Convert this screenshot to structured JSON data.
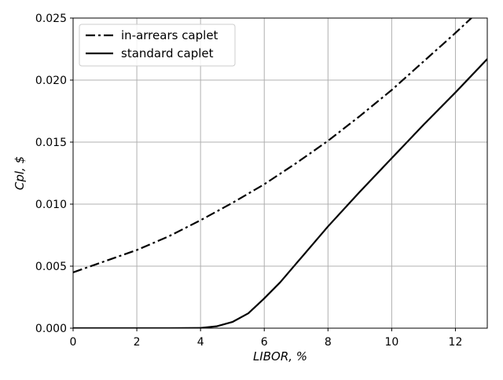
{
  "chart_data": {
    "type": "line",
    "title": "",
    "xlabel": "LIBOR, %",
    "ylabel": "Cpl, $",
    "xlim": [
      0,
      13
    ],
    "ylim": [
      0,
      0.025
    ],
    "x_ticks": [
      "0",
      "2",
      "4",
      "6",
      "8",
      "10",
      "12"
    ],
    "y_ticks": [
      "0.000",
      "0.005",
      "0.010",
      "0.015",
      "0.020",
      "0.025"
    ],
    "grid": true,
    "legend_position": "top-left",
    "series": [
      {
        "name": "in-arrears caplet",
        "style": "dash-dot",
        "color": "#000000",
        "x": [
          0,
          1,
          2,
          3,
          4,
          5,
          6,
          7,
          8,
          9,
          10,
          11,
          12,
          13
        ],
        "y": [
          0.0045,
          0.0054,
          0.0063,
          0.0074,
          0.0087,
          0.0101,
          0.0116,
          0.0133,
          0.0151,
          0.0171,
          0.0192,
          0.0215,
          0.0238,
          0.0262
        ]
      },
      {
        "name": "standard caplet",
        "style": "solid",
        "color": "#000000",
        "x": [
          0,
          1,
          2,
          3,
          4,
          4.5,
          5,
          5.5,
          6,
          6.5,
          7,
          8,
          9,
          10,
          11,
          12,
          13
        ],
        "y": [
          0,
          0,
          0,
          0,
          2e-05,
          0.00015,
          0.0005,
          0.0012,
          0.0024,
          0.0037,
          0.0052,
          0.0082,
          0.011,
          0.0137,
          0.0164,
          0.019,
          0.0217
        ]
      }
    ]
  }
}
